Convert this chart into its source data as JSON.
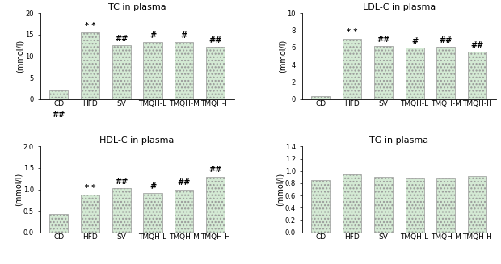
{
  "categories": [
    "CD",
    "HFD",
    "SV",
    "TMQH-L",
    "TMQH-M",
    "TMQH-H"
  ],
  "tc_values": [
    2.0,
    15.5,
    12.5,
    13.3,
    13.3,
    12.2
  ],
  "ldl_values": [
    0.4,
    7.0,
    6.2,
    6.0,
    6.1,
    5.5
  ],
  "hdl_values": [
    0.42,
    0.87,
    1.03,
    0.92,
    1.0,
    1.3
  ],
  "tg_values": [
    0.85,
    0.95,
    0.9,
    0.88,
    0.88,
    0.92
  ],
  "tc_annot_above": [
    [
      1,
      "* *"
    ],
    [
      2,
      "##"
    ],
    [
      3,
      "#"
    ],
    [
      4,
      "#"
    ],
    [
      5,
      "##"
    ]
  ],
  "tc_annot_below": [
    [
      0,
      "##"
    ]
  ],
  "ldl_annot_above": [
    [
      1,
      "* *"
    ],
    [
      2,
      "##"
    ],
    [
      3,
      "#"
    ],
    [
      4,
      "##"
    ],
    [
      5,
      "##"
    ]
  ],
  "ldl_annot_below": [],
  "hdl_annot_above": [
    [
      1,
      "* *"
    ],
    [
      2,
      "##"
    ],
    [
      3,
      "#"
    ],
    [
      4,
      "##"
    ],
    [
      5,
      "##"
    ]
  ],
  "hdl_annot_below": [],
  "tg_annot_above": [],
  "tg_annot_below": [],
  "tc_ylim": [
    0,
    20
  ],
  "ldl_ylim": [
    0,
    10
  ],
  "hdl_ylim": [
    0,
    2
  ],
  "tg_ylim": [
    0,
    1.4
  ],
  "tc_yticks": [
    0,
    5,
    10,
    15,
    20
  ],
  "ldl_yticks": [
    0,
    2,
    4,
    6,
    8,
    10
  ],
  "hdl_yticks": [
    0,
    0.5,
    1.0,
    1.5,
    2.0
  ],
  "tg_yticks": [
    0,
    0.2,
    0.4,
    0.6,
    0.8,
    1.0,
    1.2,
    1.4
  ],
  "tc_title": "TC in plasma",
  "ldl_title": "LDL-C in plasma",
  "hdl_title": "HDL-C in plasma",
  "tg_title": "TG in plasma",
  "ylabel": "(mmol/l)",
  "bar_facecolor": "#d4ead4",
  "bar_edgecolor": "#999999",
  "hatch": "....",
  "hatch_color": "#c0a0c0",
  "background_color": "#ffffff",
  "title_fontsize": 8,
  "tick_fontsize": 6,
  "ylabel_fontsize": 7,
  "annot_fontsize": 7,
  "xtick_fontsize": 6.5
}
